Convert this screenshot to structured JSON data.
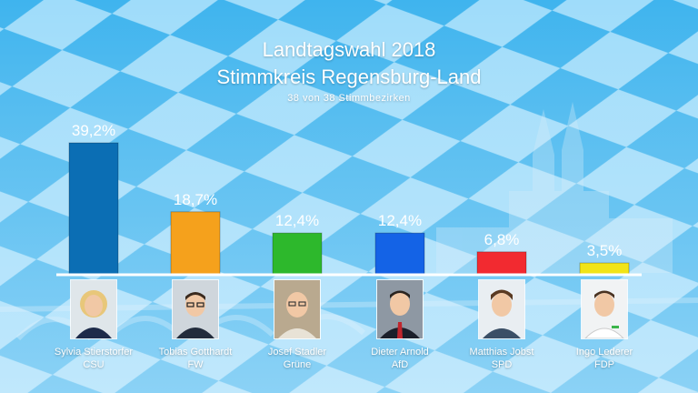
{
  "header": {
    "title": "Landtagswahl 2018",
    "subtitle": "Stimmkreis Regensburg-Land",
    "note": "38 von 38 Stimmbezirken"
  },
  "colors": {
    "background": "#3fb4ee",
    "diamond": "#ffffff"
  },
  "chart_data": {
    "type": "bar",
    "categories": [
      "Sylvia Stierstorfer",
      "Tobias Gotthardt",
      "Josef Stadler",
      "Dieter Arnold",
      "Matthias Jobst",
      "Ingo Lederer"
    ],
    "values": [
      39.2,
      18.7,
      12.4,
      12.4,
      6.8,
      3.5
    ],
    "value_labels": [
      "39,2%",
      "18,7%",
      "12,4%",
      "12,4%",
      "6,8%",
      "3,5%"
    ],
    "colors": [
      "#0b6eb4",
      "#f5a11c",
      "#2db82c",
      "#1463e6",
      "#f22a30",
      "#f1e418"
    ],
    "title": "Landtagswahl 2018",
    "subtitle": "Stimmkreis Regensburg-Land",
    "ylim": [
      0,
      40
    ],
    "grid": false,
    "legend": "none"
  },
  "candidates": [
    {
      "name": "Sylvia Stierstorfer",
      "party": "CSU",
      "photo_icon": "portrait-woman-blonde-icon"
    },
    {
      "name": "Tobias Gotthardt",
      "party": "FW",
      "photo_icon": "portrait-man-glasses-icon"
    },
    {
      "name": "Josef Stadler",
      "party": "Grüne",
      "photo_icon": "portrait-man-bald-icon"
    },
    {
      "name": "Dieter Arnold",
      "party": "AfD",
      "photo_icon": "portrait-man-suit-icon"
    },
    {
      "name": "Matthias Jobst",
      "party": "SPD",
      "photo_icon": "portrait-man-young-icon"
    },
    {
      "name": "Ingo Lederer",
      "party": "FDP",
      "photo_icon": "portrait-man-white-shirt-icon"
    }
  ]
}
